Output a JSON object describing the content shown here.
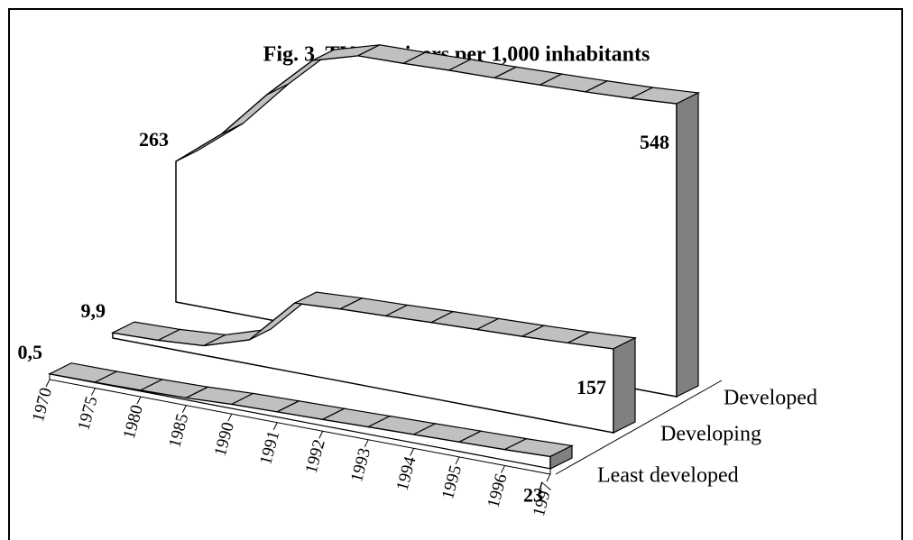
{
  "chart_data": {
    "type": "ribbon3d",
    "title": "Fig. 3. TV Receivers per 1,000 inhabitants",
    "categories": [
      "1970",
      "1975",
      "1980",
      "1985",
      "1990",
      "1991",
      "1992",
      "1993",
      "1994",
      "1995",
      "1996",
      "1997"
    ],
    "series": [
      {
        "name": "Least developed",
        "color": "#c0c0c0",
        "values": [
          0.5,
          1,
          2,
          4,
          8,
          10,
          12,
          14,
          16,
          18,
          20,
          23
        ],
        "value_labels": [
          "0,5",
          null,
          null,
          null,
          null,
          null,
          null,
          null,
          null,
          null,
          null,
          "23"
        ]
      },
      {
        "name": "Developing",
        "color": "#c0c0c0",
        "values": [
          9.9,
          12,
          18,
          45,
          130,
          135,
          138,
          142,
          145,
          148,
          152,
          157
        ],
        "value_labels": [
          "9,9",
          null,
          null,
          null,
          null,
          null,
          null,
          null,
          null,
          null,
          null,
          "157"
        ]
      },
      {
        "name": "Developed",
        "color": "#c0c0c0",
        "values": [
          263,
          330,
          420,
          500,
          525,
          527,
          530,
          532,
          535,
          538,
          542,
          548
        ],
        "value_labels": [
          "263",
          null,
          null,
          null,
          null,
          null,
          null,
          null,
          null,
          null,
          null,
          "548"
        ]
      }
    ]
  }
}
